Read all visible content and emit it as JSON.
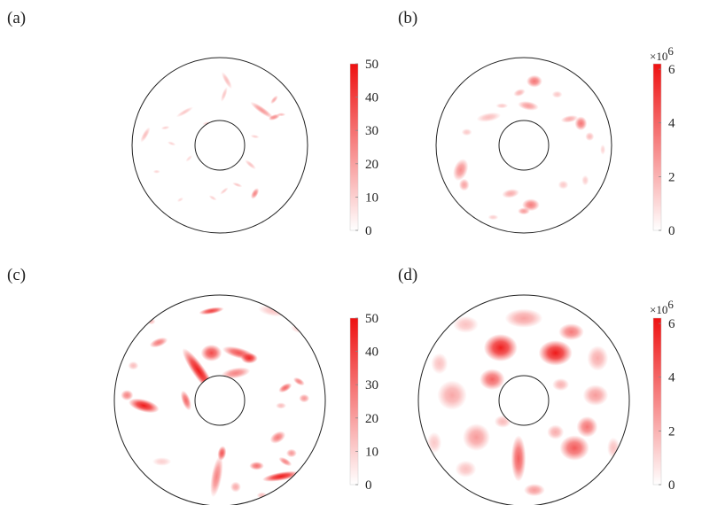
{
  "colors": {
    "accent": "#ee1111",
    "background": "#ffffff",
    "outline": "#222222"
  },
  "chart_data": [
    {
      "type": "heatmap",
      "label": "(a)",
      "domain": "annulus",
      "colorbar": {
        "min": 0,
        "max": 50,
        "ticks": [
          "0",
          "10",
          "20",
          "30",
          "40",
          "50"
        ],
        "multiplier": ""
      },
      "blobs": [
        {
          "x": 0.08,
          "y": 0.74,
          "rx": 0.11,
          "ry": 0.03,
          "rot": -60,
          "v": 14
        },
        {
          "x": 0.05,
          "y": 0.58,
          "rx": 0.09,
          "ry": 0.025,
          "rot": 70,
          "v": 12
        },
        {
          "x": 0.48,
          "y": 0.4,
          "rx": 0.16,
          "ry": 0.035,
          "rot": -35,
          "v": 22
        },
        {
          "x": 0.62,
          "y": 0.32,
          "rx": 0.07,
          "ry": 0.03,
          "rot": 20,
          "v": 24
        },
        {
          "x": 0.62,
          "y": 0.52,
          "rx": 0.06,
          "ry": 0.025,
          "rot": 50,
          "v": 18
        },
        {
          "x": 0.7,
          "y": 0.35,
          "rx": 0.05,
          "ry": 0.02,
          "rot": 0,
          "v": 14
        },
        {
          "x": -0.4,
          "y": 0.38,
          "rx": 0.11,
          "ry": 0.025,
          "rot": 30,
          "v": 12
        },
        {
          "x": -0.62,
          "y": 0.2,
          "rx": 0.05,
          "ry": 0.02,
          "rot": 10,
          "v": 10
        },
        {
          "x": -0.55,
          "y": 0.02,
          "rx": 0.05,
          "ry": 0.02,
          "rot": -20,
          "v": 9
        },
        {
          "x": -0.85,
          "y": 0.12,
          "rx": 0.1,
          "ry": 0.03,
          "rot": 60,
          "v": 14
        },
        {
          "x": -0.72,
          "y": -0.3,
          "rx": 0.04,
          "ry": 0.02,
          "rot": 0,
          "v": 9
        },
        {
          "x": -0.35,
          "y": -0.15,
          "rx": 0.05,
          "ry": 0.02,
          "rot": 45,
          "v": 8
        },
        {
          "x": 0.35,
          "y": -0.22,
          "rx": 0.08,
          "ry": 0.025,
          "rot": -40,
          "v": 13
        },
        {
          "x": 0.4,
          "y": -0.55,
          "rx": 0.07,
          "ry": 0.035,
          "rot": 60,
          "v": 26
        },
        {
          "x": 0.2,
          "y": -0.45,
          "rx": 0.06,
          "ry": 0.02,
          "rot": -20,
          "v": 12
        },
        {
          "x": 0.05,
          "y": -0.52,
          "rx": 0.06,
          "ry": 0.02,
          "rot": 40,
          "v": 11
        },
        {
          "x": -0.08,
          "y": -0.6,
          "rx": 0.05,
          "ry": 0.02,
          "rot": -30,
          "v": 10
        },
        {
          "x": -0.15,
          "y": 0.25,
          "rx": 0.05,
          "ry": 0.02,
          "rot": 10,
          "v": 9
        },
        {
          "x": 0.4,
          "y": 0.1,
          "rx": 0.05,
          "ry": 0.02,
          "rot": -10,
          "v": 10
        },
        {
          "x": -0.45,
          "y": -0.62,
          "rx": 0.04,
          "ry": 0.02,
          "rot": 30,
          "v": 8
        }
      ]
    },
    {
      "type": "heatmap",
      "label": "(b)",
      "domain": "annulus",
      "colorbar": {
        "min": 0,
        "max": 6.2,
        "ticks": [
          "0",
          "2",
          "4",
          "6"
        ],
        "multiplier": "×10",
        "exponent": "6"
      },
      "blobs": [
        {
          "x": 0.12,
          "y": 0.73,
          "rx": 0.09,
          "ry": 0.07,
          "rot": 0,
          "v": 3.6
        },
        {
          "x": 0.05,
          "y": 0.45,
          "rx": 0.12,
          "ry": 0.05,
          "rot": -10,
          "v": 2.6
        },
        {
          "x": -0.05,
          "y": 0.6,
          "rx": 0.07,
          "ry": 0.04,
          "rot": 20,
          "v": 2.0
        },
        {
          "x": 0.65,
          "y": 0.25,
          "rx": 0.07,
          "ry": 0.08,
          "rot": 0,
          "v": 3.6
        },
        {
          "x": 0.52,
          "y": 0.3,
          "rx": 0.1,
          "ry": 0.04,
          "rot": 10,
          "v": 2.2
        },
        {
          "x": 0.75,
          "y": 0.1,
          "rx": 0.05,
          "ry": 0.05,
          "rot": 0,
          "v": 1.8
        },
        {
          "x": -0.4,
          "y": 0.32,
          "rx": 0.14,
          "ry": 0.05,
          "rot": 10,
          "v": 1.7
        },
        {
          "x": -0.65,
          "y": 0.15,
          "rx": 0.06,
          "ry": 0.04,
          "rot": 0,
          "v": 1.4
        },
        {
          "x": -0.72,
          "y": -0.28,
          "rx": 0.08,
          "ry": 0.13,
          "rot": -20,
          "v": 3.0
        },
        {
          "x": -0.68,
          "y": -0.45,
          "rx": 0.06,
          "ry": 0.07,
          "rot": 0,
          "v": 2.4
        },
        {
          "x": -0.15,
          "y": -0.55,
          "rx": 0.1,
          "ry": 0.05,
          "rot": 10,
          "v": 2.2
        },
        {
          "x": 0.08,
          "y": -0.68,
          "rx": 0.1,
          "ry": 0.07,
          "rot": 0,
          "v": 3.4
        },
        {
          "x": 0.0,
          "y": -0.75,
          "rx": 0.07,
          "ry": 0.04,
          "rot": 0,
          "v": 2.6
        },
        {
          "x": 0.45,
          "y": -0.45,
          "rx": 0.06,
          "ry": 0.05,
          "rot": 0,
          "v": 1.4
        },
        {
          "x": 0.7,
          "y": -0.4,
          "rx": 0.04,
          "ry": 0.06,
          "rot": 0,
          "v": 1.3
        },
        {
          "x": 0.38,
          "y": 0.58,
          "rx": 0.06,
          "ry": 0.04,
          "rot": 0,
          "v": 1.5
        },
        {
          "x": -0.25,
          "y": 0.45,
          "rx": 0.07,
          "ry": 0.03,
          "rot": 0,
          "v": 1.4
        },
        {
          "x": -0.35,
          "y": -0.82,
          "rx": 0.06,
          "ry": 0.03,
          "rot": 0,
          "v": 1.3
        },
        {
          "x": 0.9,
          "y": -0.05,
          "rx": 0.03,
          "ry": 0.06,
          "rot": 0,
          "v": 1.2
        }
      ]
    },
    {
      "type": "heatmap",
      "label": "(c)",
      "domain": "annulus",
      "colorbar": {
        "min": 0,
        "max": 50,
        "ticks": [
          "0",
          "10",
          "20",
          "30",
          "40",
          "50"
        ],
        "multiplier": ""
      },
      "blobs": [
        {
          "x": -0.2,
          "y": 0.28,
          "rx": 0.26,
          "ry": 0.06,
          "rot": -55,
          "v": 48
        },
        {
          "x": -0.08,
          "y": 0.45,
          "rx": 0.1,
          "ry": 0.08,
          "rot": 0,
          "v": 38
        },
        {
          "x": -0.32,
          "y": 0.0,
          "rx": 0.1,
          "ry": 0.04,
          "rot": -70,
          "v": 32
        },
        {
          "x": 0.18,
          "y": 0.45,
          "rx": 0.16,
          "ry": 0.05,
          "rot": -15,
          "v": 36
        },
        {
          "x": 0.28,
          "y": 0.4,
          "rx": 0.08,
          "ry": 0.05,
          "rot": 0,
          "v": 44
        },
        {
          "x": 0.15,
          "y": 0.26,
          "rx": 0.14,
          "ry": 0.05,
          "rot": 10,
          "v": 26
        },
        {
          "x": -0.58,
          "y": 0.55,
          "rx": 0.09,
          "ry": 0.04,
          "rot": 20,
          "v": 28
        },
        {
          "x": -0.08,
          "y": 0.85,
          "rx": 0.12,
          "ry": 0.03,
          "rot": 10,
          "v": 40
        },
        {
          "x": 0.5,
          "y": 0.85,
          "rx": 0.14,
          "ry": 0.05,
          "rot": -10,
          "v": 12
        },
        {
          "x": 0.75,
          "y": 0.68,
          "rx": 0.08,
          "ry": 0.04,
          "rot": -10,
          "v": 10
        },
        {
          "x": -0.72,
          "y": -0.05,
          "rx": 0.15,
          "ry": 0.06,
          "rot": -15,
          "v": 48
        },
        {
          "x": -0.88,
          "y": 0.05,
          "rx": 0.06,
          "ry": 0.05,
          "rot": 0,
          "v": 26
        },
        {
          "x": -0.82,
          "y": 0.33,
          "rx": 0.05,
          "ry": 0.04,
          "rot": 0,
          "v": 14
        },
        {
          "x": 0.62,
          "y": 0.12,
          "rx": 0.07,
          "ry": 0.035,
          "rot": 30,
          "v": 32
        },
        {
          "x": 0.75,
          "y": 0.18,
          "rx": 0.06,
          "ry": 0.03,
          "rot": -30,
          "v": 26
        },
        {
          "x": 0.8,
          "y": 0.02,
          "rx": 0.05,
          "ry": 0.04,
          "rot": 0,
          "v": 22
        },
        {
          "x": 0.58,
          "y": -0.05,
          "rx": 0.05,
          "ry": 0.03,
          "rot": 0,
          "v": 14
        },
        {
          "x": 0.55,
          "y": -0.35,
          "rx": 0.08,
          "ry": 0.05,
          "rot": 30,
          "v": 28
        },
        {
          "x": 0.68,
          "y": -0.5,
          "rx": 0.05,
          "ry": 0.04,
          "rot": 0,
          "v": 22
        },
        {
          "x": 0.35,
          "y": -0.62,
          "rx": 0.07,
          "ry": 0.04,
          "rot": 0,
          "v": 30
        },
        {
          "x": 0.58,
          "y": -0.72,
          "rx": 0.18,
          "ry": 0.04,
          "rot": 10,
          "v": 48
        },
        {
          "x": 0.62,
          "y": -0.58,
          "rx": 0.07,
          "ry": 0.03,
          "rot": -30,
          "v": 26
        },
        {
          "x": -0.03,
          "y": -0.72,
          "rx": 0.2,
          "ry": 0.05,
          "rot": 80,
          "v": 26
        },
        {
          "x": 0.02,
          "y": -0.5,
          "rx": 0.07,
          "ry": 0.04,
          "rot": 80,
          "v": 36
        },
        {
          "x": -0.55,
          "y": -0.58,
          "rx": 0.09,
          "ry": 0.04,
          "rot": 0,
          "v": 10
        },
        {
          "x": 0.15,
          "y": -0.82,
          "rx": 0.05,
          "ry": 0.05,
          "rot": 0,
          "v": 18
        },
        {
          "x": 0.4,
          "y": -0.9,
          "rx": 0.05,
          "ry": 0.03,
          "rot": 0,
          "v": 14
        },
        {
          "x": -0.95,
          "y": -0.4,
          "rx": 0.04,
          "ry": 0.04,
          "rot": 0,
          "v": 10
        },
        {
          "x": -0.65,
          "y": 0.75,
          "rx": 0.04,
          "ry": 0.03,
          "rot": 0,
          "v": 14
        }
      ]
    },
    {
      "type": "heatmap",
      "label": "(d)",
      "domain": "annulus",
      "colorbar": {
        "min": 0,
        "max": 6.2,
        "ticks": [
          "0",
          "2",
          "4",
          "6"
        ],
        "multiplier": "×10",
        "exponent": "6"
      },
      "blobs": [
        {
          "x": -0.22,
          "y": 0.5,
          "rx": 0.16,
          "ry": 0.13,
          "rot": 0,
          "v": 5.8
        },
        {
          "x": -0.3,
          "y": 0.2,
          "rx": 0.12,
          "ry": 0.1,
          "rot": 0,
          "v": 4.0
        },
        {
          "x": 0.3,
          "y": 0.45,
          "rx": 0.16,
          "ry": 0.12,
          "rot": 0,
          "v": 6.0
        },
        {
          "x": 0.45,
          "y": 0.65,
          "rx": 0.12,
          "ry": 0.08,
          "rot": 0,
          "v": 3.5
        },
        {
          "x": 0.0,
          "y": 0.78,
          "rx": 0.18,
          "ry": 0.09,
          "rot": 0,
          "v": 2.4
        },
        {
          "x": -0.55,
          "y": 0.72,
          "rx": 0.12,
          "ry": 0.08,
          "rot": 0,
          "v": 1.6
        },
        {
          "x": 0.7,
          "y": 0.4,
          "rx": 0.1,
          "ry": 0.12,
          "rot": 0,
          "v": 2.2
        },
        {
          "x": 0.68,
          "y": 0.05,
          "rx": 0.12,
          "ry": 0.1,
          "rot": 0,
          "v": 2.6
        },
        {
          "x": -0.68,
          "y": 0.05,
          "rx": 0.14,
          "ry": 0.14,
          "rot": 0,
          "v": 2.3
        },
        {
          "x": -0.8,
          "y": 0.35,
          "rx": 0.08,
          "ry": 0.1,
          "rot": 0,
          "v": 1.6
        },
        {
          "x": -0.45,
          "y": -0.35,
          "rx": 0.13,
          "ry": 0.13,
          "rot": 0,
          "v": 2.6
        },
        {
          "x": -0.55,
          "y": -0.65,
          "rx": 0.1,
          "ry": 0.08,
          "rot": 0,
          "v": 1.6
        },
        {
          "x": -0.05,
          "y": -0.55,
          "rx": 0.07,
          "ry": 0.22,
          "rot": 0,
          "v": 4.2
        },
        {
          "x": 0.1,
          "y": -0.85,
          "rx": 0.1,
          "ry": 0.06,
          "rot": 0,
          "v": 2.6
        },
        {
          "x": 0.48,
          "y": -0.45,
          "rx": 0.14,
          "ry": 0.12,
          "rot": 0,
          "v": 4.3
        },
        {
          "x": 0.6,
          "y": -0.25,
          "rx": 0.1,
          "ry": 0.1,
          "rot": 0,
          "v": 3.6
        },
        {
          "x": 0.3,
          "y": -0.3,
          "rx": 0.08,
          "ry": 0.07,
          "rot": 0,
          "v": 2.2
        },
        {
          "x": 0.85,
          "y": -0.45,
          "rx": 0.06,
          "ry": 0.1,
          "rot": 0,
          "v": 1.6
        },
        {
          "x": -0.85,
          "y": -0.4,
          "rx": 0.07,
          "ry": 0.1,
          "rot": 0,
          "v": 1.4
        },
        {
          "x": 0.35,
          "y": 0.15,
          "rx": 0.08,
          "ry": 0.06,
          "rot": 0,
          "v": 2.0
        },
        {
          "x": -0.2,
          "y": -0.2,
          "rx": 0.08,
          "ry": 0.06,
          "rot": 0,
          "v": 1.8
        }
      ]
    }
  ]
}
